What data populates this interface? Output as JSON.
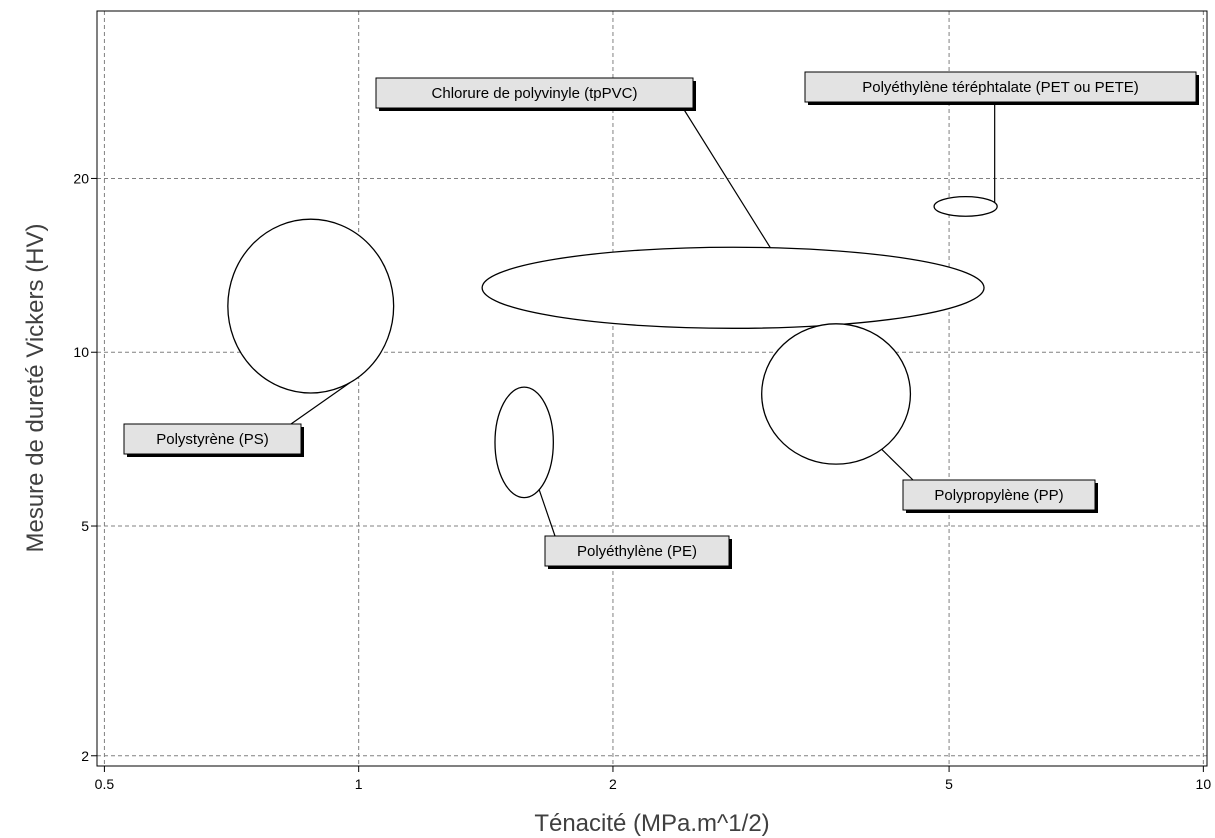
{
  "chart_data": {
    "type": "bubble-ellipse",
    "xlabel": "Ténacité (MPa.m^1/2)",
    "ylabel": "Mesure de dureté Vickers (HV)",
    "xscale": "log",
    "yscale": "log",
    "xlim": [
      0.49,
      10.1
    ],
    "ylim": [
      1.92,
      39
    ],
    "xticks": [
      0.5,
      1,
      2,
      5,
      10
    ],
    "xtick_labels": [
      "0.5",
      "1",
      "2",
      "5",
      "10"
    ],
    "yticks": [
      2,
      5,
      10,
      20
    ],
    "ytick_labels": [
      "2",
      "5",
      "10",
      "20"
    ],
    "grid": true,
    "materials": [
      {
        "name": "Polystyrène (PS)",
        "x_range": [
          0.7,
          1.1
        ],
        "y_range": [
          8.5,
          17
        ]
      },
      {
        "name": "Chlorure de polyvinyle (tpPVC)",
        "x_range": [
          1.4,
          5.5
        ],
        "y_range": [
          11,
          15.2
        ]
      },
      {
        "name": "Polyéthylène (PE)",
        "x_range": [
          1.45,
          1.7
        ],
        "y_range": [
          5.6,
          8.7
        ]
      },
      {
        "name": "Polypropylène (PP)",
        "x_range": [
          3.0,
          4.5
        ],
        "y_range": [
          6.4,
          11.2
        ]
      },
      {
        "name": "Polyéthylène téréphtalate (PET ou PETE)",
        "x_range": [
          4.8,
          5.7
        ],
        "y_range": [
          17.2,
          18.6
        ]
      }
    ]
  }
}
